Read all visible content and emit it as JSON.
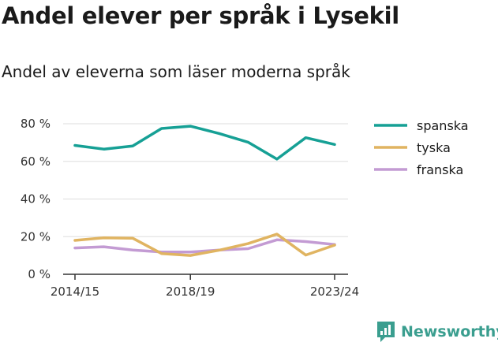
{
  "header": {
    "title": "Andel elever per språk i Lysekil",
    "subtitle": "Andel av eleverna som läser moderna språk"
  },
  "brand": {
    "name": "Newsworthy",
    "color": "#3a9e8f"
  },
  "chart_data": {
    "type": "line",
    "title": "Andel elever per språk i Lysekil",
    "subtitle": "Andel av eleverna som läser moderna språk",
    "x": [
      "2014/15",
      "2015/16",
      "2016/17",
      "2017/18",
      "2018/19",
      "2019/20",
      "2020/21",
      "2021/22",
      "2022/23",
      "2023/24"
    ],
    "x_tick_labels": [
      "2014/15",
      "2018/19",
      "2023/24"
    ],
    "y_ticks": [
      0,
      20,
      40,
      60,
      80
    ],
    "y_tick_labels": [
      "0 %",
      "20 %",
      "40 %",
      "60 %",
      "80 %"
    ],
    "ylim": [
      0,
      80
    ],
    "grid": true,
    "legend_position": "right",
    "series": [
      {
        "name": "spanska",
        "color": "#16a095",
        "values": [
          68.5,
          66.5,
          68.2,
          77.5,
          78.7,
          74.8,
          70.2,
          61.2,
          72.6,
          69.0
        ]
      },
      {
        "name": "tyska",
        "color": "#e0b461",
        "values": [
          18.0,
          19.4,
          19.2,
          11.0,
          10.0,
          12.8,
          16.3,
          21.3,
          10.2,
          15.5
        ]
      },
      {
        "name": "franska",
        "color": "#c39bd3",
        "values": [
          14.0,
          14.6,
          12.9,
          11.8,
          11.8,
          12.9,
          13.6,
          18.3,
          17.4,
          15.8
        ]
      }
    ]
  }
}
